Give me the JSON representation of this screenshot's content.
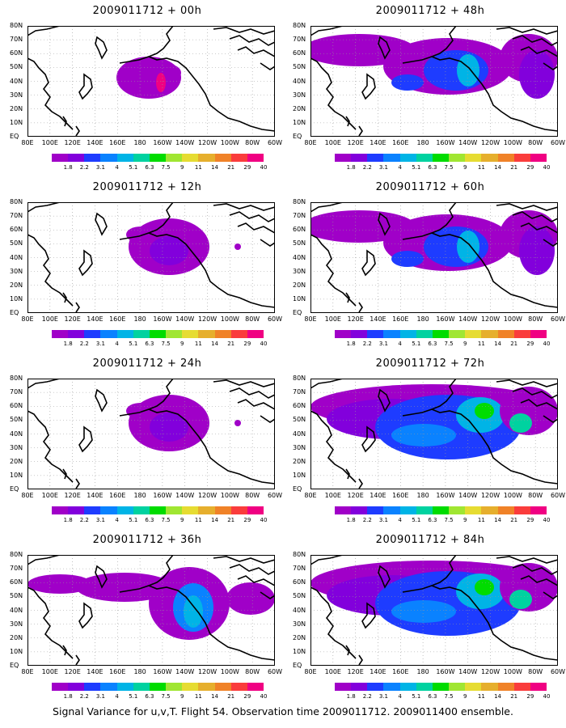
{
  "panels": [
    {
      "title": "2009011712 + 00h",
      "coverage": "sparse"
    },
    {
      "title": "2009011712 + 48h",
      "coverage": "mid"
    },
    {
      "title": "2009011712 + 12h",
      "coverage": "low"
    },
    {
      "title": "2009011712 + 60h",
      "coverage": "mid"
    },
    {
      "title": "2009011712 + 24h",
      "coverage": "low"
    },
    {
      "title": "2009011712 + 72h",
      "coverage": "high"
    },
    {
      "title": "2009011712 + 36h",
      "coverage": "mid-low"
    },
    {
      "title": "2009011712 + 84h",
      "coverage": "high"
    }
  ],
  "lat_labels": [
    "80N",
    "70N",
    "60N",
    "50N",
    "40N",
    "30N",
    "20N",
    "10N",
    "EQ"
  ],
  "lon_labels": [
    "80E",
    "100E",
    "120E",
    "140E",
    "160E",
    "180",
    "160W",
    "140W",
    "120W",
    "100W",
    "80W",
    "60W"
  ],
  "colorbar": {
    "labels": [
      "1.8",
      "2.2",
      "3.1",
      "4",
      "5.1",
      "6.3",
      "7.5",
      "9",
      "11",
      "14",
      "21",
      "29",
      "40"
    ],
    "colors": [
      "#a000c8",
      "#8200dc",
      "#1e3cff",
      "#0a82ff",
      "#00b4e6",
      "#00d2a0",
      "#00dc00",
      "#a0e632",
      "#e6dc32",
      "#e6af2d",
      "#f08228",
      "#fa3c3c",
      "#f00082"
    ]
  },
  "footer": "Signal Variance for u,v,T. Flight 54. Observation time 2009011712. 2009011400 ensemble."
}
